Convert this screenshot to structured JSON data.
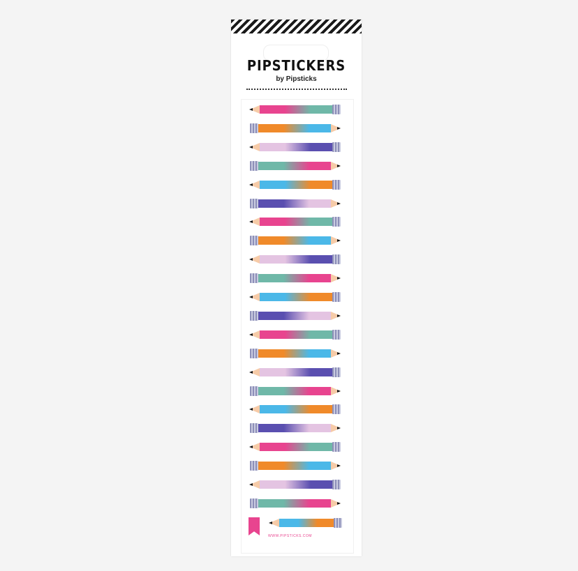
{
  "brand": {
    "title": "PIPSTICKERS",
    "subtitle": "by Pipsticks",
    "url": "WWW.PIPSTICKS.COM"
  },
  "colors": {
    "pink": "#e8448f",
    "teal": "#6fb8a8",
    "orange": "#f08a2a",
    "blue": "#4bb8e8",
    "lavender": "#e4c4e2",
    "purple": "#5a4fb0"
  },
  "pencil_pattern": [
    {
      "tip": "left",
      "from": "pink",
      "to": "teal"
    },
    {
      "tip": "right",
      "from": "orange",
      "to": "blue"
    },
    {
      "tip": "left",
      "from": "lavender",
      "to": "purple"
    },
    {
      "tip": "right",
      "from": "teal",
      "to": "pink"
    },
    {
      "tip": "left",
      "from": "blue",
      "to": "orange"
    },
    {
      "tip": "right",
      "from": "purple",
      "to": "lavender"
    }
  ],
  "pencil_count": 22,
  "bottom_pencil": {
    "tip": "left",
    "from": "blue",
    "to": "orange"
  }
}
